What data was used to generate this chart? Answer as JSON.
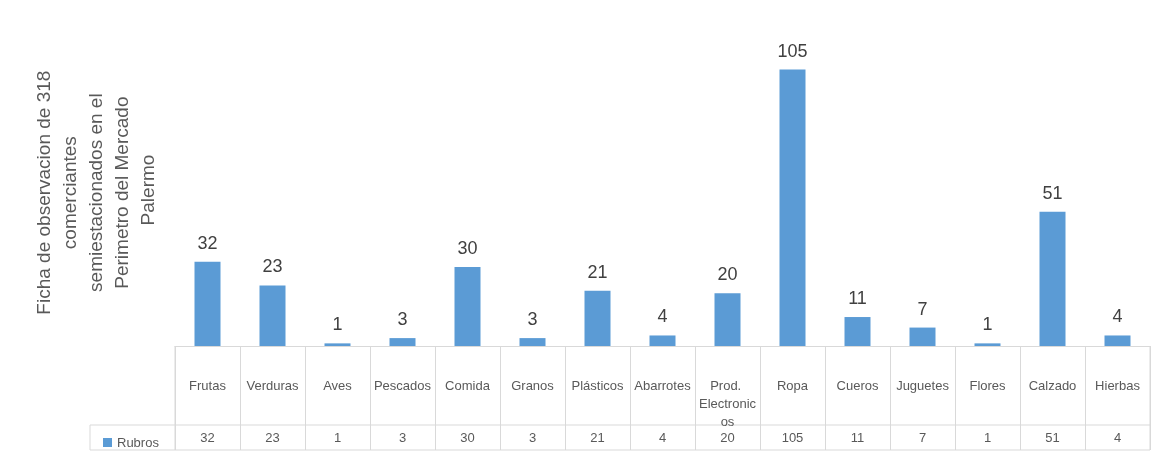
{
  "chart_data": {
    "type": "bar",
    "ylabel": "Ficha de observacion de 318 comerciantes semiestacionados en el Perimetro del Mercado Palermo",
    "categories": [
      "Frutas",
      "Verduras",
      "Aves",
      "Pescados",
      "Comida",
      "Granos",
      "Plásticos",
      "Abarrotes",
      "Prod. Electronicos",
      "Ropa",
      "Cueros",
      "Juguetes",
      "Flores",
      "Calzado",
      "Hierbas"
    ],
    "series": [
      {
        "name": "Rubros",
        "color": "#5b9bd5",
        "values": [
          32,
          23,
          1,
          3,
          30,
          3,
          21,
          4,
          20,
          105,
          11,
          7,
          1,
          51,
          4
        ],
        "value_labels": [
          "32",
          "23",
          "1",
          "3",
          "30",
          "3",
          "21",
          "4",
          "20",
          "105",
          "11",
          "7",
          "1",
          "51",
          "4"
        ]
      }
    ],
    "data_labels": true,
    "legend": "bottom left",
    "grid": false
  }
}
